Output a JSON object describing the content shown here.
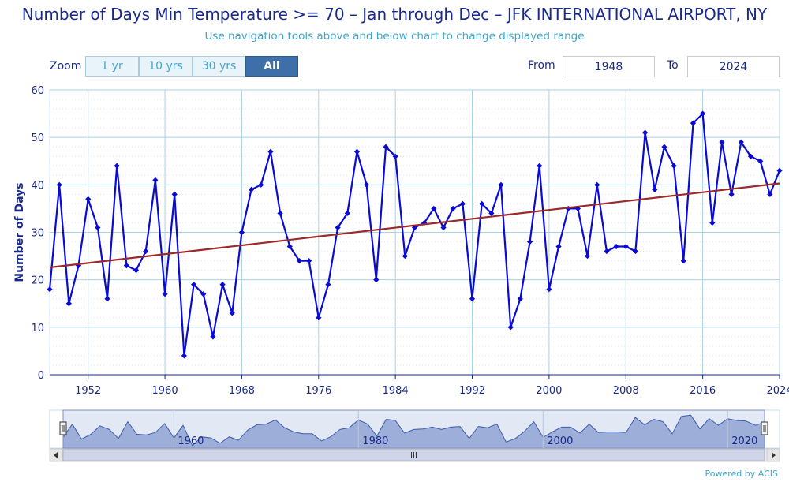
{
  "title": "Number of Days Min Temperature >= 70 – Jan through Dec – JFK INTERNATIONAL AIRPORT, NY",
  "subtitle": "Use navigation tools above and below chart to change displayed range",
  "zoom": {
    "label": "Zoom",
    "buttons": [
      "1 yr",
      "10 yrs",
      "30 yrs",
      "All"
    ],
    "active": "All"
  },
  "range": {
    "from_label": "From",
    "from": "1948",
    "to_label": "To",
    "to": "2024"
  },
  "credit": "Powered by ACIS",
  "colors": {
    "series": "#0a0ad6",
    "trend": "#9b2a2a",
    "navigator_fill": "#aab8de",
    "navigator_line": "#3355aa"
  },
  "chart_data": {
    "type": "line",
    "title": "Number of Days Min Temperature >= 70 – Jan through Dec – JFK INTERNATIONAL AIRPORT, NY",
    "xlabel": "",
    "ylabel": "Number of Days",
    "ylim": [
      0,
      60
    ],
    "xlim": [
      1948,
      2024
    ],
    "yticks": [
      0,
      10,
      20,
      30,
      40,
      50,
      60
    ],
    "xticks": [
      1952,
      1960,
      1968,
      1976,
      1984,
      1992,
      2000,
      2008,
      2016,
      2024
    ],
    "grid": true,
    "x": [
      1948,
      1949,
      1950,
      1951,
      1952,
      1953,
      1954,
      1955,
      1956,
      1957,
      1958,
      1959,
      1960,
      1961,
      1962,
      1963,
      1964,
      1965,
      1966,
      1967,
      1968,
      1969,
      1970,
      1971,
      1972,
      1973,
      1974,
      1975,
      1976,
      1977,
      1978,
      1979,
      1980,
      1981,
      1982,
      1983,
      1984,
      1985,
      1986,
      1987,
      1988,
      1989,
      1990,
      1991,
      1992,
      1993,
      1994,
      1995,
      1996,
      1997,
      1998,
      1999,
      2000,
      2001,
      2002,
      2003,
      2004,
      2005,
      2006,
      2007,
      2008,
      2009,
      2010,
      2011,
      2012,
      2013,
      2014,
      2015,
      2016,
      2017,
      2018,
      2019,
      2020,
      2021,
      2022,
      2023,
      2024
    ],
    "series": [
      {
        "values": [
          18,
          40,
          15,
          23,
          37,
          31,
          16,
          44,
          23,
          22,
          26,
          41,
          17,
          38,
          4,
          19,
          17,
          8,
          19,
          13,
          30,
          39,
          40,
          47,
          34,
          27,
          24,
          24,
          12,
          19,
          31,
          34,
          47,
          40,
          20,
          48,
          46,
          25,
          31,
          32,
          35,
          31,
          35,
          36,
          16,
          36,
          34,
          40,
          10,
          16,
          28,
          44,
          18,
          27,
          35,
          35,
          25,
          40,
          26,
          27,
          27,
          26,
          51,
          39,
          48,
          44,
          24,
          53,
          55,
          32,
          49,
          38,
          49,
          46,
          45,
          38,
          43
        ]
      }
    ],
    "trend": {
      "start": [
        1948,
        22.6
      ],
      "end": [
        2024,
        40.3
      ]
    },
    "navigator": {
      "xticks": [
        1960,
        1980,
        2000,
        2020
      ]
    }
  }
}
